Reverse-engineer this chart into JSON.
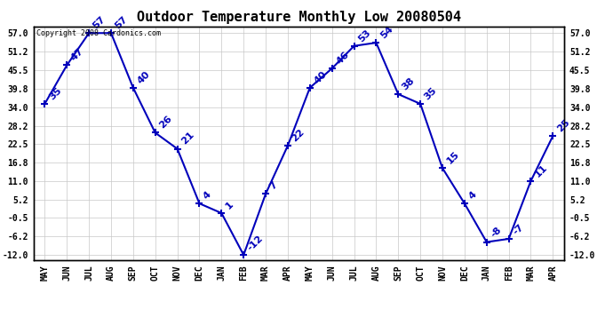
{
  "title": "Outdoor Temperature Monthly Low 20080504",
  "copyright": "Copyright 2008 Cardonics.com",
  "months": [
    "MAY",
    "JUN",
    "JUL",
    "AUG",
    "SEP",
    "OCT",
    "NOV",
    "DEC",
    "JAN",
    "FEB",
    "MAR",
    "APR",
    "MAY",
    "JUN",
    "JUL",
    "AUG",
    "SEP",
    "OCT",
    "NOV",
    "DEC",
    "JAN",
    "FEB",
    "MAR",
    "APR"
  ],
  "values": [
    35,
    47,
    57,
    57,
    40,
    26,
    21,
    4,
    1,
    -12,
    7,
    22,
    40,
    46,
    53,
    54,
    38,
    35,
    15,
    4,
    -8,
    -7,
    11,
    25
  ],
  "ylim_min": -13.5,
  "ylim_max": 59.0,
  "yticks": [
    -12.0,
    -6.2,
    -0.5,
    5.2,
    11.0,
    16.8,
    22.5,
    28.2,
    34.0,
    39.8,
    45.5,
    51.2,
    57.0
  ],
  "ytick_labels": [
    "-12.0",
    "-6.2",
    "-0.5",
    "5.2",
    "11.0",
    "16.8",
    "22.5",
    "28.2",
    "34.0",
    "39.8",
    "45.5",
    "51.2",
    "57.0"
  ],
  "line_color": "#0000bb",
  "marker": "+",
  "marker_size": 6,
  "bg_color": "#ffffff",
  "grid_color": "#c8c8c8",
  "title_fontsize": 11,
  "label_fontsize": 7,
  "annotation_fontsize": 8,
  "copyright_fontsize": 6
}
